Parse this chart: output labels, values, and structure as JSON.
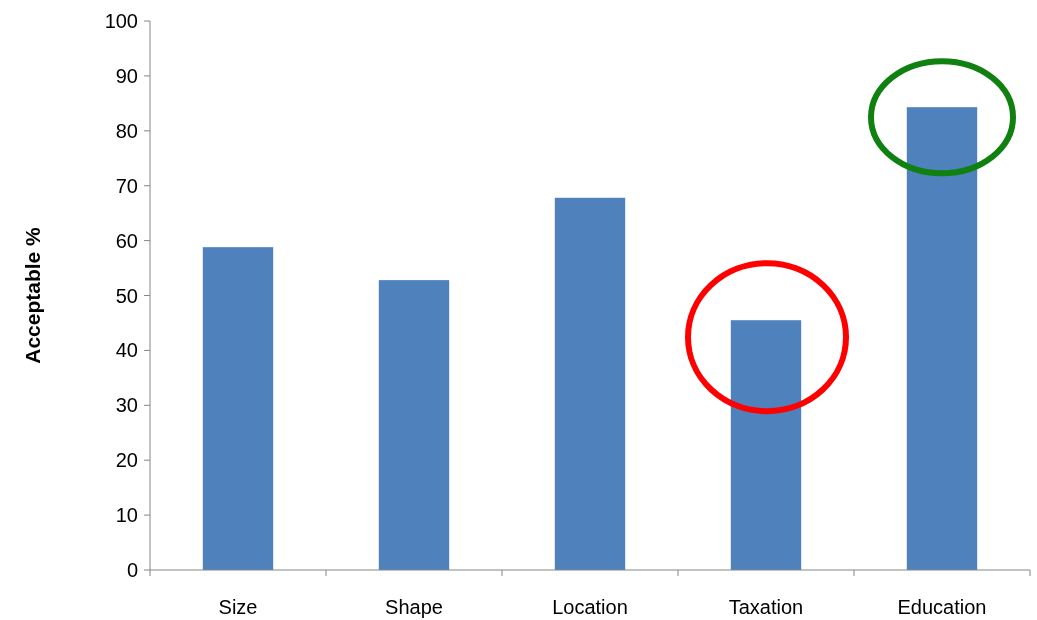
{
  "chart_data": {
    "type": "bar",
    "ylabel": "Acceptable %",
    "categories": [
      "Size",
      "Shape",
      "Location",
      "Taxation",
      "Education"
    ],
    "values": [
      58.8,
      52.8,
      67.8,
      45.5,
      84.3
    ],
    "color": "#4f81bd",
    "ylim": [
      0,
      100
    ],
    "yticks": [
      0,
      10,
      20,
      30,
      40,
      50,
      60,
      70,
      80,
      90,
      100
    ],
    "grid": false
  }
}
